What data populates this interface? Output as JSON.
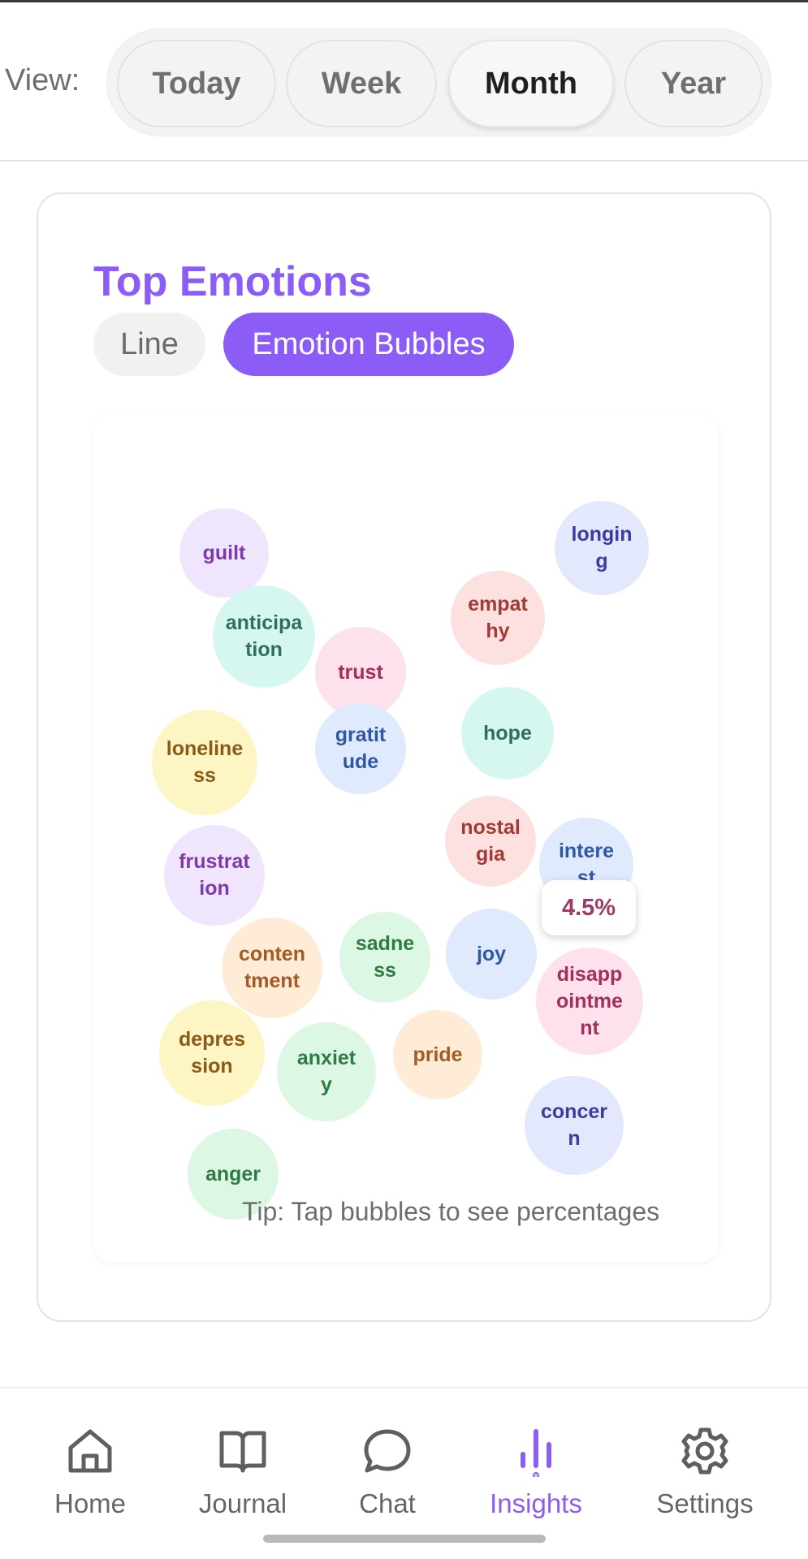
{
  "view": {
    "label": "View:",
    "options": [
      "Today",
      "Week",
      "Month",
      "Year"
    ],
    "selected": "Month"
  },
  "card": {
    "title": "Top Emotions",
    "toggle": {
      "line": "Line",
      "bubbles": "Emotion Bubbles",
      "selected": "Emotion Bubbles"
    }
  },
  "bubbles": [
    {
      "label": "guilt",
      "bg": "#efe6fd",
      "fg": "#7e3aa8"
    },
    {
      "label": "longing",
      "bg": "#e4e8fd",
      "fg": "#3f3aa0"
    },
    {
      "label": "empathy",
      "bg": "#fde1e1",
      "fg": "#a33a34"
    },
    {
      "label": "anticipation",
      "bg": "#d6f7ef",
      "fg": "#2d6e63"
    },
    {
      "label": "trust",
      "bg": "#fde1ec",
      "fg": "#a33058"
    },
    {
      "label": "hope",
      "bg": "#d6f7ef",
      "fg": "#2d6e63"
    },
    {
      "label": "loneliness",
      "bg": "#fdf6c4",
      "fg": "#8a5a17"
    },
    {
      "label": "gratitude",
      "bg": "#dfeafd",
      "fg": "#2f58a3"
    },
    {
      "label": "nostalgia",
      "bg": "#fde1e1",
      "fg": "#a33a34"
    },
    {
      "label": "interest",
      "bg": "#dfeafd",
      "fg": "#2f58a3"
    },
    {
      "label": "frustration",
      "bg": "#efe6fd",
      "fg": "#7e3aa8"
    },
    {
      "label": "contentment",
      "bg": "#feecd7",
      "fg": "#a35a25"
    },
    {
      "label": "sadness",
      "bg": "#dcf7e3",
      "fg": "#2f7a45"
    },
    {
      "label": "joy",
      "bg": "#dfeafd",
      "fg": "#2f58a3"
    },
    {
      "label": "disappointment",
      "bg": "#fde1ec",
      "fg": "#a33058"
    },
    {
      "label": "depression",
      "bg": "#fdf6c4",
      "fg": "#8a5a17"
    },
    {
      "label": "anxiety",
      "bg": "#dcf7e3",
      "fg": "#2f7a45"
    },
    {
      "label": "pride",
      "bg": "#feecd7",
      "fg": "#a35a25"
    },
    {
      "label": "concern",
      "bg": "#e4e8fd",
      "fg": "#3f3aa0"
    },
    {
      "label": "anger",
      "bg": "#dcf7e3",
      "fg": "#2f7a45"
    }
  ],
  "tooltip": {
    "value": "4.5%"
  },
  "tip": "Tip: Tap bubbles to see percentages",
  "nav": {
    "items": [
      {
        "label": "Home",
        "icon": "home-icon"
      },
      {
        "label": "Journal",
        "icon": "book-icon"
      },
      {
        "label": "Chat",
        "icon": "chat-bubble-icon"
      },
      {
        "label": "Insights",
        "icon": "insights-bars-icon"
      },
      {
        "label": "Settings",
        "icon": "gear-icon"
      }
    ],
    "active": "Insights"
  },
  "colors": {
    "accent": "#8b5cf6",
    "inactive": "#666666"
  }
}
